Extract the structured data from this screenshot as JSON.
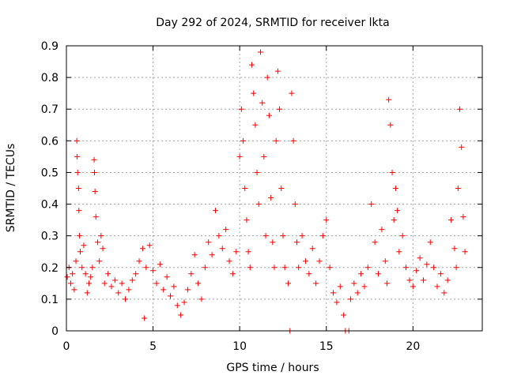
{
  "chart_data": {
    "type": "scatter",
    "title": "Day 292 of 2024, SRMTID for receiver lkta",
    "xlabel": "GPS time / hours",
    "ylabel": "SRMTID / TECUs",
    "xlim": [
      0,
      24
    ],
    "ylim": [
      0,
      0.9
    ],
    "xticks": [
      "0",
      "5",
      "10",
      "15",
      "20"
    ],
    "yticks": [
      "0",
      "0.1",
      "0.2",
      "0.3",
      "0.4",
      "0.5",
      "0.6",
      "0.7",
      "0.8",
      "0.9"
    ],
    "grid": true,
    "marker": "+",
    "color": "#ff0000",
    "series": [
      {
        "name": "SRMTID",
        "points": [
          [
            0.05,
            0.17
          ],
          [
            0.15,
            0.2
          ],
          [
            0.25,
            0.15
          ],
          [
            0.35,
            0.18
          ],
          [
            0.45,
            0.13
          ],
          [
            0.55,
            0.22
          ],
          [
            0.6,
            0.6
          ],
          [
            0.62,
            0.55
          ],
          [
            0.65,
            0.5
          ],
          [
            0.7,
            0.45
          ],
          [
            0.72,
            0.38
          ],
          [
            0.75,
            0.3
          ],
          [
            0.8,
            0.25
          ],
          [
            0.9,
            0.2
          ],
          [
            1.0,
            0.27
          ],
          [
            1.1,
            0.18
          ],
          [
            1.2,
            0.12
          ],
          [
            1.3,
            0.15
          ],
          [
            1.4,
            0.17
          ],
          [
            1.5,
            0.2
          ],
          [
            1.6,
            0.54
          ],
          [
            1.62,
            0.5
          ],
          [
            1.65,
            0.44
          ],
          [
            1.7,
            0.36
          ],
          [
            1.8,
            0.28
          ],
          [
            1.9,
            0.22
          ],
          [
            2.0,
            0.3
          ],
          [
            2.1,
            0.26
          ],
          [
            2.2,
            0.15
          ],
          [
            2.4,
            0.18
          ],
          [
            2.6,
            0.14
          ],
          [
            2.8,
            0.16
          ],
          [
            3.0,
            0.12
          ],
          [
            3.2,
            0.15
          ],
          [
            3.4,
            0.1
          ],
          [
            3.6,
            0.13
          ],
          [
            3.8,
            0.16
          ],
          [
            4.0,
            0.18
          ],
          [
            4.2,
            0.22
          ],
          [
            4.4,
            0.26
          ],
          [
            4.5,
            0.04
          ],
          [
            4.6,
            0.2
          ],
          [
            4.8,
            0.27
          ],
          [
            5.0,
            0.19
          ],
          [
            5.2,
            0.15
          ],
          [
            5.4,
            0.21
          ],
          [
            5.6,
            0.13
          ],
          [
            5.8,
            0.17
          ],
          [
            6.0,
            0.11
          ],
          [
            6.2,
            0.14
          ],
          [
            6.4,
            0.08
          ],
          [
            6.6,
            0.05
          ],
          [
            6.8,
            0.09
          ],
          [
            7.0,
            0.13
          ],
          [
            7.2,
            0.18
          ],
          [
            7.4,
            0.24
          ],
          [
            7.6,
            0.15
          ],
          [
            7.8,
            0.1
          ],
          [
            8.0,
            0.2
          ],
          [
            8.2,
            0.28
          ],
          [
            8.4,
            0.24
          ],
          [
            8.6,
            0.38
          ],
          [
            8.8,
            0.3
          ],
          [
            9.0,
            0.26
          ],
          [
            9.2,
            0.32
          ],
          [
            9.4,
            0.22
          ],
          [
            9.6,
            0.18
          ],
          [
            9.8,
            0.25
          ],
          [
            10.0,
            0.55
          ],
          [
            10.1,
            0.7
          ],
          [
            10.2,
            0.6
          ],
          [
            10.3,
            0.45
          ],
          [
            10.4,
            0.35
          ],
          [
            10.5,
            0.25
          ],
          [
            10.6,
            0.2
          ],
          [
            10.7,
            0.84
          ],
          [
            10.8,
            0.75
          ],
          [
            10.9,
            0.65
          ],
          [
            11.0,
            0.5
          ],
          [
            11.1,
            0.4
          ],
          [
            11.2,
            0.88
          ],
          [
            11.3,
            0.72
          ],
          [
            11.4,
            0.55
          ],
          [
            11.5,
            0.3
          ],
          [
            11.6,
            0.8
          ],
          [
            11.7,
            0.68
          ],
          [
            11.8,
            0.42
          ],
          [
            11.9,
            0.28
          ],
          [
            12.0,
            0.2
          ],
          [
            12.1,
            0.6
          ],
          [
            12.2,
            0.82
          ],
          [
            12.3,
            0.7
          ],
          [
            12.4,
            0.45
          ],
          [
            12.5,
            0.3
          ],
          [
            12.6,
            0.2
          ],
          [
            12.8,
            0.15
          ],
          [
            12.9,
            0.0
          ],
          [
            13.0,
            0.75
          ],
          [
            13.1,
            0.6
          ],
          [
            13.2,
            0.4
          ],
          [
            13.3,
            0.28
          ],
          [
            13.4,
            0.2
          ],
          [
            13.6,
            0.3
          ],
          [
            13.8,
            0.22
          ],
          [
            14.0,
            0.18
          ],
          [
            14.2,
            0.26
          ],
          [
            14.4,
            0.15
          ],
          [
            14.6,
            0.22
          ],
          [
            14.8,
            0.3
          ],
          [
            15.0,
            0.35
          ],
          [
            15.2,
            0.2
          ],
          [
            15.4,
            0.12
          ],
          [
            15.6,
            0.09
          ],
          [
            15.8,
            0.14
          ],
          [
            16.0,
            0.05
          ],
          [
            16.1,
            0.0
          ],
          [
            16.3,
            0.0
          ],
          [
            16.4,
            0.1
          ],
          [
            16.6,
            0.15
          ],
          [
            16.8,
            0.12
          ],
          [
            17.0,
            0.18
          ],
          [
            17.2,
            0.14
          ],
          [
            17.4,
            0.2
          ],
          [
            17.6,
            0.4
          ],
          [
            17.8,
            0.28
          ],
          [
            18.0,
            0.18
          ],
          [
            18.2,
            0.32
          ],
          [
            18.4,
            0.22
          ],
          [
            18.5,
            0.15
          ],
          [
            18.6,
            0.73
          ],
          [
            18.7,
            0.65
          ],
          [
            18.8,
            0.5
          ],
          [
            18.9,
            0.35
          ],
          [
            19.0,
            0.45
          ],
          [
            19.1,
            0.38
          ],
          [
            19.2,
            0.25
          ],
          [
            19.4,
            0.3
          ],
          [
            19.6,
            0.2
          ],
          [
            19.8,
            0.16
          ],
          [
            20.0,
            0.14
          ],
          [
            20.2,
            0.19
          ],
          [
            20.4,
            0.23
          ],
          [
            20.6,
            0.16
          ],
          [
            20.8,
            0.21
          ],
          [
            21.0,
            0.28
          ],
          [
            21.2,
            0.2
          ],
          [
            21.4,
            0.14
          ],
          [
            21.6,
            0.18
          ],
          [
            21.8,
            0.12
          ],
          [
            22.0,
            0.16
          ],
          [
            22.2,
            0.35
          ],
          [
            22.4,
            0.26
          ],
          [
            22.5,
            0.2
          ],
          [
            22.6,
            0.45
          ],
          [
            22.7,
            0.7
          ],
          [
            22.8,
            0.58
          ],
          [
            22.9,
            0.36
          ],
          [
            23.0,
            0.25
          ]
        ]
      }
    ]
  }
}
